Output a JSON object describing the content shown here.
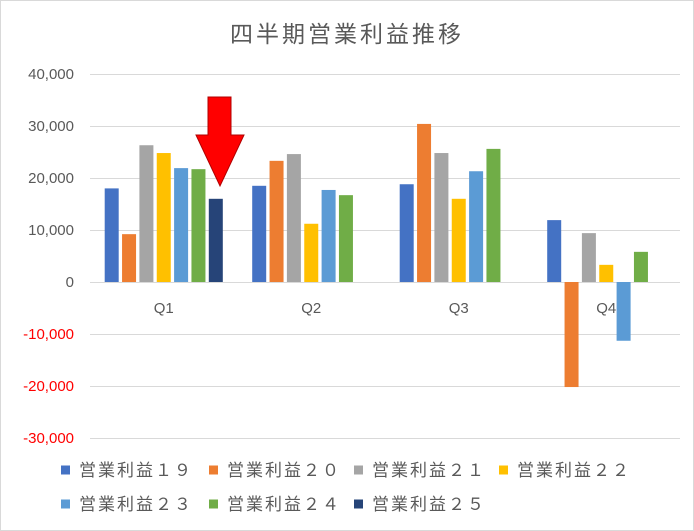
{
  "chart_data": {
    "type": "bar",
    "title": "四半期営業利益推移",
    "categories": [
      "Q1",
      "Q2",
      "Q3",
      "Q4"
    ],
    "series": [
      {
        "name": "営業利益１９",
        "color": "#4472C4",
        "values": [
          18000,
          18500,
          18800,
          11900
        ]
      },
      {
        "name": "営業利益２０",
        "color": "#ED7D31",
        "values": [
          9200,
          23300,
          30400,
          -20200
        ]
      },
      {
        "name": "営業利益２１",
        "color": "#A5A5A5",
        "values": [
          26300,
          24600,
          24800,
          9400
        ]
      },
      {
        "name": "営業利益２２",
        "color": "#FFC000",
        "values": [
          24800,
          11200,
          16000,
          3300
        ]
      },
      {
        "name": "営業利益２３",
        "color": "#5B9BD5",
        "values": [
          21900,
          17700,
          21300,
          -11300
        ]
      },
      {
        "name": "営業利益２４",
        "color": "#70AD47",
        "values": [
          21700,
          16700,
          25600,
          5800
        ]
      },
      {
        "name": "営業利益２５",
        "color": "#264478",
        "values": [
          16000,
          null,
          null,
          null
        ]
      }
    ],
    "ylim": [
      -30000,
      40000
    ],
    "yticks": [
      40000,
      30000,
      20000,
      10000,
      0,
      -10000,
      -20000,
      -30000
    ],
    "ytick_labels": [
      "40,000",
      "30,000",
      "20,000",
      "10,000",
      "0",
      "-10,000",
      "-20,000",
      "-30,000"
    ],
    "label_color": "#595959",
    "negative_label_color": "#FF0000",
    "grid": true,
    "legend": "bottom"
  },
  "annotation": {
    "arrow": {
      "icon": "down-arrow-icon",
      "color": "#FF0000"
    }
  }
}
